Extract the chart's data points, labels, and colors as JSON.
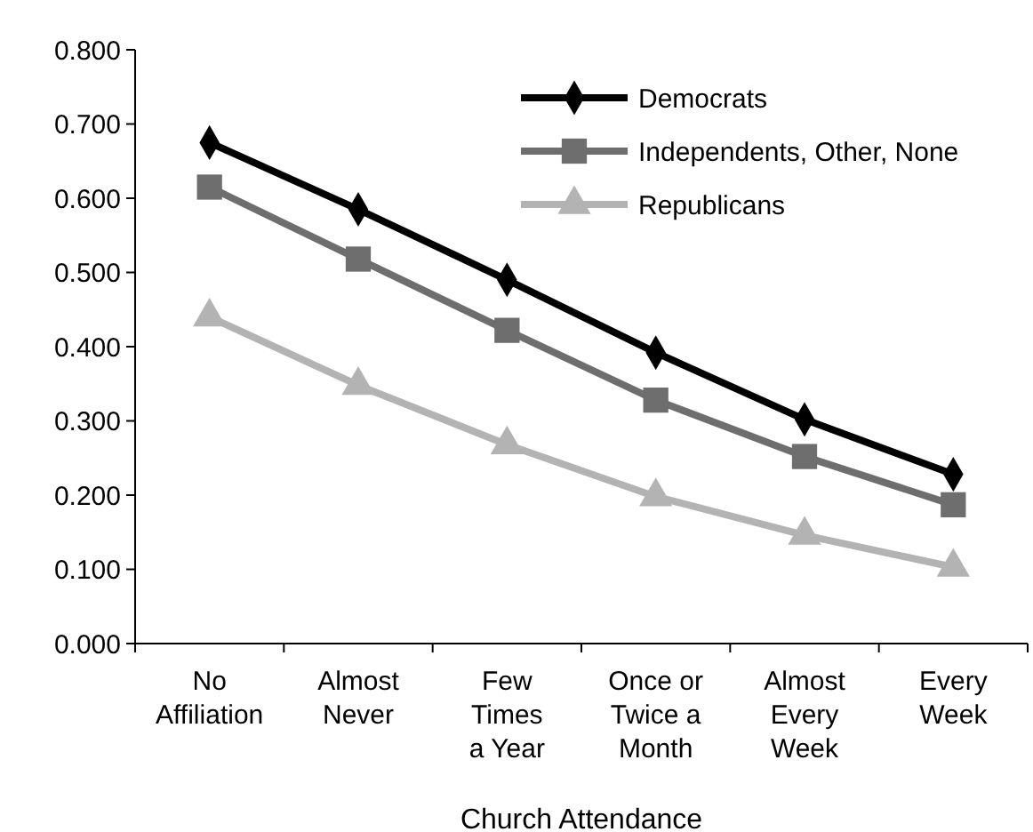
{
  "chart_data": {
    "type": "line",
    "xlabel": "Church Attendance",
    "categories": [
      "No\nAffiliation",
      "Almost\nNever",
      "Few\nTimes\na Year",
      "Once or\nTwice a\nMonth",
      "Almost\nEvery\nWeek",
      "Every\nWeek"
    ],
    "series": [
      {
        "name": "Democrats",
        "color": "#000000",
        "marker": "diamond",
        "values": [
          0.675,
          0.585,
          0.49,
          0.392,
          0.302,
          0.228
        ]
      },
      {
        "name": "Independents, Other, None",
        "color": "#6e6e6e",
        "marker": "square",
        "values": [
          0.615,
          0.518,
          0.422,
          0.328,
          0.252,
          0.187
        ]
      },
      {
        "name": "Republicans",
        "color": "#b3b3b3",
        "marker": "triangle",
        "values": [
          0.44,
          0.348,
          0.268,
          0.198,
          0.146,
          0.103
        ]
      }
    ],
    "ylim": [
      0,
      0.8
    ],
    "yticks": [
      {
        "value": 0,
        "label": "0.000"
      },
      {
        "value": 0.1,
        "label": "0.100"
      },
      {
        "value": 0.2,
        "label": "0.200"
      },
      {
        "value": 0.3,
        "label": "0.300"
      },
      {
        "value": 0.4,
        "label": "0.400"
      },
      {
        "value": 0.5,
        "label": "0.500"
      },
      {
        "value": 0.6,
        "label": "0.600"
      },
      {
        "value": 0.7,
        "label": "0.700"
      },
      {
        "value": 0.8,
        "label": "0.800"
      }
    ],
    "legend": "top right"
  }
}
